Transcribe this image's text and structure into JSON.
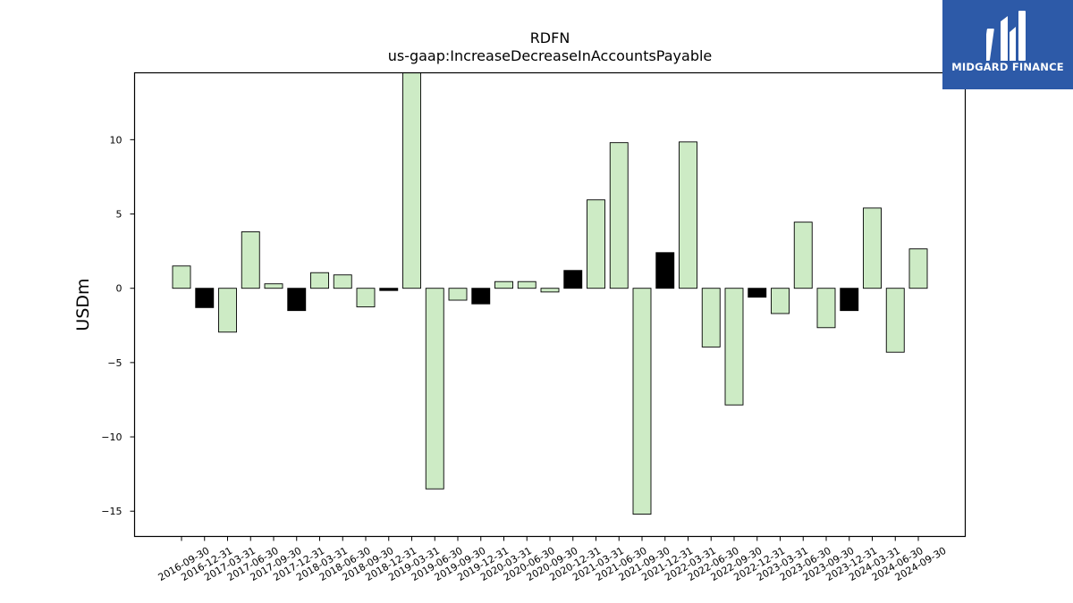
{
  "chart_data": {
    "type": "bar",
    "title": "RDFN",
    "subtitle": "us-gaap:IncreaseDecreaseInAccountsPayable",
    "xlabel": "",
    "ylabel": "USDm",
    "ylim": [
      -16.7,
      14.5
    ],
    "yticks": [
      10,
      5,
      0,
      -5,
      -10,
      -15
    ],
    "ytick_labels": [
      "10",
      "5",
      "0",
      "−5",
      "−10",
      "−15"
    ],
    "grid": false,
    "legend": "none",
    "categories": [
      "2016-09-30",
      "2016-12-31",
      "2017-03-31",
      "2017-06-30",
      "2017-09-30",
      "2017-12-31",
      "2018-03-31",
      "2018-06-30",
      "2018-09-30",
      "2018-12-31",
      "2019-03-31",
      "2019-06-30",
      "2019-09-30",
      "2019-12-31",
      "2020-03-31",
      "2020-06-30",
      "2020-09-30",
      "2020-12-31",
      "2021-03-31",
      "2021-06-30",
      "2021-09-30",
      "2021-12-31",
      "2022-03-31",
      "2022-06-30",
      "2022-09-30",
      "2022-12-31",
      "2023-03-31",
      "2023-06-30",
      "2023-09-30",
      "2023-12-31",
      "2024-03-31",
      "2024-06-30",
      "2024-09-30"
    ],
    "values": [
      1.5,
      -1.3,
      -2.95,
      3.8,
      0.3,
      -1.5,
      1.05,
      0.9,
      -1.25,
      -0.15,
      14.5,
      -13.5,
      -0.8,
      -1.05,
      0.45,
      0.45,
      -0.25,
      1.2,
      5.95,
      9.8,
      -15.2,
      2.4,
      9.85,
      -3.95,
      -7.85,
      -0.6,
      -1.7,
      4.45,
      -2.65,
      -1.5,
      5.4,
      -4.3,
      2.65
    ],
    "highlight": [
      false,
      true,
      false,
      false,
      false,
      true,
      false,
      false,
      false,
      true,
      false,
      false,
      false,
      true,
      false,
      false,
      false,
      true,
      false,
      false,
      false,
      true,
      false,
      false,
      false,
      true,
      false,
      false,
      false,
      true,
      false,
      false,
      false
    ],
    "colors": {
      "bar": "#cdebc5",
      "highlight": "#000000",
      "edge": "#000000"
    }
  },
  "logo": {
    "text": "MIDGARD FINANCE",
    "background": "#2d5aa8"
  }
}
